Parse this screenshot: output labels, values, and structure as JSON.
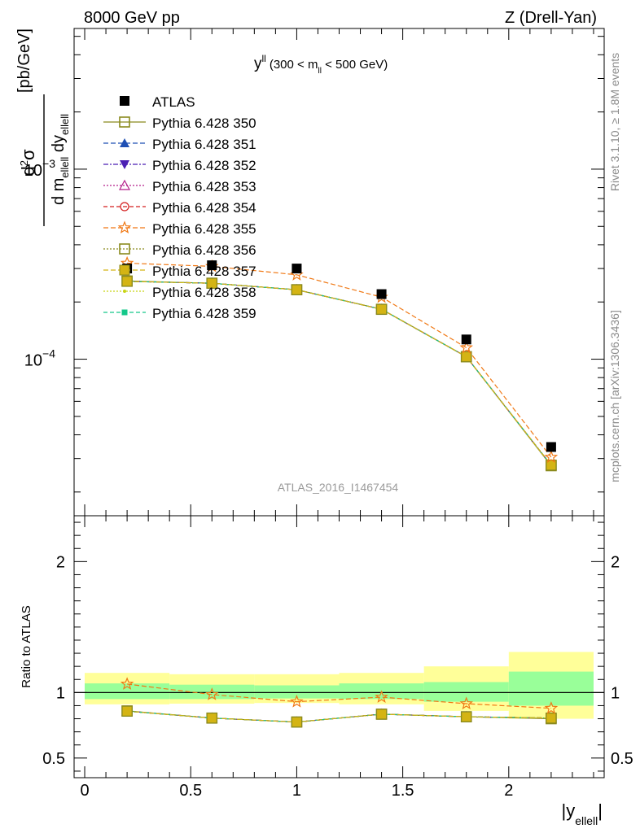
{
  "header": {
    "left": "8000 GeV pp",
    "right": "Z (Drell-Yan)"
  },
  "side_labels": {
    "rivet": "Rivet 3.1.10, ≥ 1.8M events",
    "mcplots": "mcplots.cern.ch [arXiv:1306.3436]"
  },
  "watermark": "ATLAS_2016_I1467454",
  "plot_title": {
    "main": "y",
    "main_sup": "ll",
    "paren_start": "(300 < m",
    "paren_sub": "ll",
    "paren_end": " < 500 GeV)"
  },
  "axis_titles": {
    "y_main_unit": "[pb/GeV]",
    "y_ratio": "Ratio to ATLAS",
    "x": "|y",
    "x_sub": "ellell",
    "x_end": "|"
  },
  "colors": {
    "ATLAS": "#000000",
    "350": "#8a8a1e",
    "351": "#1f4fb4",
    "352": "#4b1fb4",
    "353": "#b41f8a",
    "354": "#d41f1f",
    "355": "#f07814",
    "356": "#8a8a1e",
    "357": "#d4b414",
    "358": "#c8d414",
    "359": "#14c88a",
    "band_inner": "#99ff99",
    "band_outer": "#ffff99"
  },
  "chart_data": {
    "type": "scatter",
    "x": [
      0.2,
      0.6,
      1.0,
      1.4,
      1.8,
      2.2
    ],
    "x_bins": [
      [
        0.0,
        0.4
      ],
      [
        0.4,
        0.8
      ],
      [
        0.8,
        1.2
      ],
      [
        1.2,
        1.6
      ],
      [
        1.6,
        2.0
      ],
      [
        2.0,
        2.4
      ]
    ],
    "xlim": [
      -0.05,
      2.45
    ],
    "ylim_main": [
      1.5e-05,
      0.0055
    ],
    "ylim_ratio": [
      0.35,
      2.35
    ],
    "y_scale_main": "log",
    "x_ticks": [
      "0",
      "0.5",
      "1",
      "1.5",
      "2"
    ],
    "y_ticks_main": [
      {
        "base": "10",
        "exp": "−4"
      },
      {
        "base": "10",
        "exp": "−3"
      }
    ],
    "y_ticks_ratio": [
      "0.5",
      "1",
      "2"
    ],
    "legend_position": "top-left",
    "atlas": {
      "name": "ATLAS",
      "values": [
        0.0003,
        0.000312,
        0.0003,
        0.00022,
        0.000127,
        3.45e-05
      ]
    },
    "band_inner": [
      [
        0.95,
        1.07
      ],
      [
        0.95,
        1.06
      ],
      [
        0.955,
        1.055
      ],
      [
        0.95,
        1.07
      ],
      [
        0.93,
        1.08
      ],
      [
        0.9,
        1.16
      ]
    ],
    "band_outer": [
      [
        0.91,
        1.15
      ],
      [
        0.915,
        1.14
      ],
      [
        0.92,
        1.14
      ],
      [
        0.91,
        1.15
      ],
      [
        0.86,
        1.2
      ],
      [
        0.8,
        1.31
      ]
    ],
    "series": [
      {
        "name": "Pythia 6.428 350",
        "key": "350",
        "marker": "square-open",
        "dash": "",
        "values": [
          0.000258,
          0.000251,
          0.000232,
          0.000183,
          0.000103,
          2.75e-05
        ],
        "ratio": [
          0.86,
          0.805,
          0.775,
          0.835,
          0.815,
          0.8
        ]
      },
      {
        "name": "Pythia 6.428 351",
        "key": "351",
        "marker": "triangle-up",
        "dash": "6,3",
        "values": [
          0.000257,
          0.000251,
          0.000232,
          0.000183,
          0.000103,
          2.77e-05
        ],
        "ratio": [
          0.858,
          0.805,
          0.775,
          0.835,
          0.815,
          0.805
        ]
      },
      {
        "name": "Pythia 6.428 352",
        "key": "352",
        "marker": "triangle-down",
        "dash": "6,2,2,2",
        "values": [
          0.000257,
          0.000251,
          0.000232,
          0.000183,
          0.000103,
          2.77e-05
        ],
        "ratio": [
          0.858,
          0.805,
          0.775,
          0.835,
          0.815,
          0.805
        ]
      },
      {
        "name": "Pythia 6.428 353",
        "key": "353",
        "marker": "triangle-open",
        "dash": "2,2",
        "values": [
          0.000257,
          0.000251,
          0.000232,
          0.000183,
          0.000103,
          2.77e-05
        ],
        "ratio": [
          0.858,
          0.805,
          0.775,
          0.835,
          0.815,
          0.805
        ]
      },
      {
        "name": "Pythia 6.428 354",
        "key": "354",
        "marker": "circle-open",
        "dash": "5,3",
        "values": [
          0.000257,
          0.000251,
          0.000232,
          0.000183,
          0.000103,
          2.77e-05
        ],
        "ratio": [
          0.858,
          0.805,
          0.775,
          0.835,
          0.815,
          0.805
        ]
      },
      {
        "name": "Pythia 6.428 355",
        "key": "355",
        "marker": "star-open",
        "dash": "6,3",
        "values": [
          0.00032,
          0.000308,
          0.000278,
          0.000212,
          0.000115,
          3.05e-05
        ],
        "ratio": [
          1.065,
          0.985,
          0.93,
          0.965,
          0.915,
          0.88
        ]
      },
      {
        "name": "Pythia 6.428 356",
        "key": "356",
        "marker": "square-open",
        "dash": "2,2",
        "values": [
          0.000257,
          0.000251,
          0.000232,
          0.000183,
          0.000103,
          2.77e-05
        ],
        "ratio": [
          0.858,
          0.805,
          0.775,
          0.835,
          0.815,
          0.805
        ]
      },
      {
        "name": "Pythia 6.428 357",
        "key": "357",
        "marker": "square-filled",
        "dash": "6,3",
        "values": [
          0.000257,
          0.000251,
          0.000232,
          0.000183,
          0.000103,
          2.77e-05
        ],
        "ratio": [
          0.858,
          0.805,
          0.775,
          0.835,
          0.815,
          0.805
        ]
      },
      {
        "name": "Pythia 6.428 358",
        "key": "358",
        "marker": "dot",
        "dash": "2,2",
        "values": [
          0.000257,
          0.000251,
          0.000232,
          0.000183,
          0.000103,
          2.77e-05
        ],
        "ratio": [
          0.858,
          0.805,
          0.775,
          0.835,
          0.815,
          0.805
        ]
      },
      {
        "name": "Pythia 6.428 359",
        "key": "359",
        "marker": "square-small",
        "dash": "5,3",
        "values": [
          0.000257,
          0.000251,
          0.000232,
          0.000183,
          0.000103,
          2.77e-05
        ],
        "ratio": [
          0.858,
          0.805,
          0.775,
          0.835,
          0.815,
          0.805
        ]
      }
    ]
  }
}
